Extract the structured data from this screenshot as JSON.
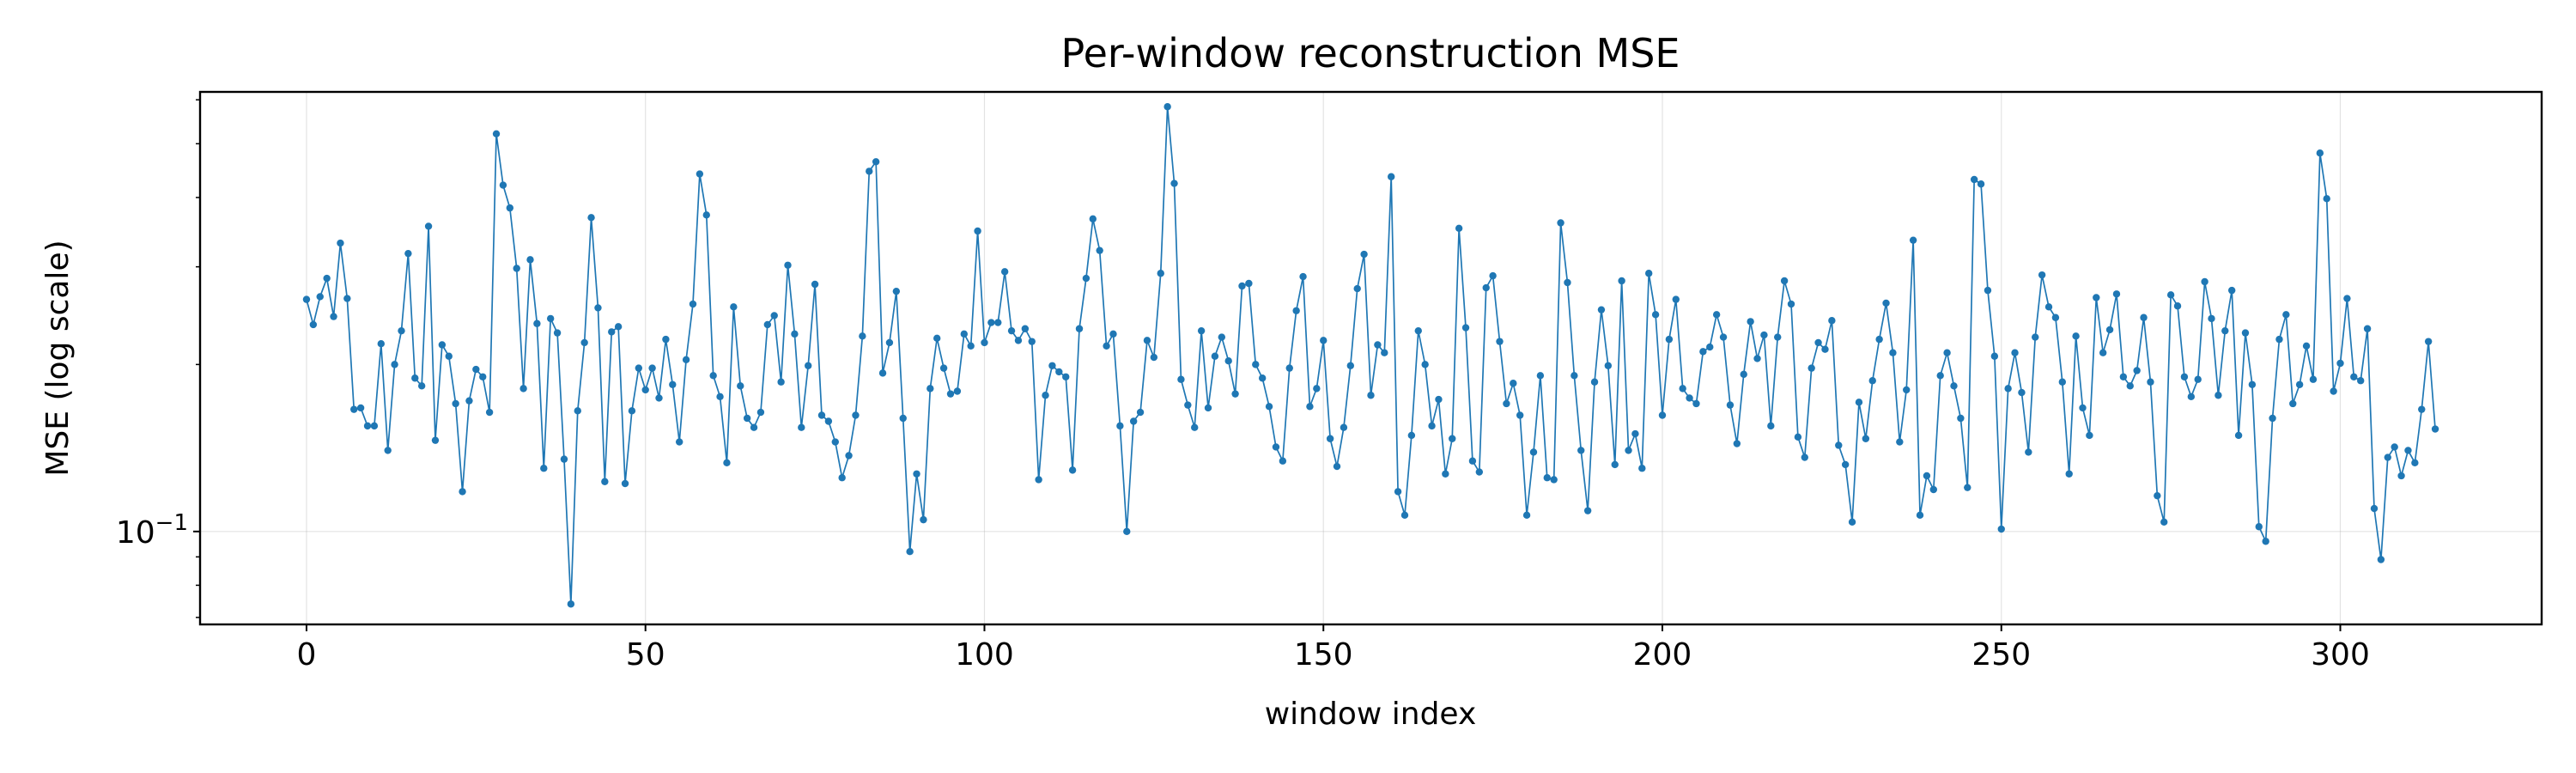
{
  "chart_data": {
    "type": "line",
    "title": "Per-window reconstruction MSE",
    "xlabel": "window index",
    "ylabel": "MSE (log scale)",
    "xlim": [
      -15.7,
      329.7
    ],
    "ylim": [
      0.068,
      0.62
    ],
    "yscale": "log",
    "grid": true,
    "legend": false,
    "x_ticks": [
      0,
      50,
      100,
      150,
      200,
      250,
      300
    ],
    "x_tick_labels": [
      "0",
      "50",
      "100",
      "150",
      "200",
      "250",
      "300"
    ],
    "y_major_ticks": [
      0.1
    ],
    "y_tick_label": {
      "base": "10",
      "exponent": "−1"
    },
    "y_minor_ticks": [
      0.07,
      0.08,
      0.09,
      0.2,
      0.3,
      0.4,
      0.5,
      0.6
    ],
    "series": [
      {
        "color": "#1f77b4",
        "marker": "o",
        "x_start": 0,
        "values": [
          0.262,
          0.236,
          0.265,
          0.286,
          0.244,
          0.331,
          0.263,
          0.166,
          0.167,
          0.155,
          0.155,
          0.218,
          0.14,
          0.2,
          0.23,
          0.317,
          0.189,
          0.183,
          0.355,
          0.146,
          0.217,
          0.207,
          0.17,
          0.118,
          0.172,
          0.196,
          0.19,
          0.164,
          0.521,
          0.421,
          0.383,
          0.298,
          0.181,
          0.309,
          0.237,
          0.13,
          0.242,
          0.228,
          0.135,
          0.074,
          0.165,
          0.219,
          0.368,
          0.253,
          0.123,
          0.229,
          0.234,
          0.122,
          0.165,
          0.197,
          0.18,
          0.197,
          0.174,
          0.222,
          0.184,
          0.145,
          0.204,
          0.257,
          0.441,
          0.372,
          0.191,
          0.175,
          0.133,
          0.254,
          0.183,
          0.16,
          0.154,
          0.164,
          0.236,
          0.245,
          0.186,
          0.302,
          0.227,
          0.154,
          0.199,
          0.279,
          0.162,
          0.158,
          0.145,
          0.125,
          0.137,
          0.162,
          0.225,
          0.446,
          0.464,
          0.193,
          0.219,
          0.271,
          0.16,
          0.092,
          0.127,
          0.105,
          0.181,
          0.223,
          0.197,
          0.177,
          0.179,
          0.227,
          0.216,
          0.348,
          0.219,
          0.238,
          0.238,
          0.294,
          0.23,
          0.221,
          0.232,
          0.22,
          0.124,
          0.176,
          0.199,
          0.194,
          0.19,
          0.129,
          0.232,
          0.286,
          0.366,
          0.321,
          0.216,
          0.227,
          0.155,
          0.1,
          0.158,
          0.164,
          0.221,
          0.206,
          0.292,
          0.583,
          0.424,
          0.188,
          0.169,
          0.154,
          0.23,
          0.167,
          0.207,
          0.224,
          0.203,
          0.177,
          0.277,
          0.28,
          0.2,
          0.189,
          0.168,
          0.142,
          0.134,
          0.197,
          0.25,
          0.288,
          0.168,
          0.181,
          0.221,
          0.147,
          0.131,
          0.154,
          0.199,
          0.274,
          0.316,
          0.176,
          0.217,
          0.21,
          0.436,
          0.118,
          0.107,
          0.149,
          0.23,
          0.2,
          0.155,
          0.173,
          0.127,
          0.147,
          0.352,
          0.233,
          0.134,
          0.128,
          0.275,
          0.289,
          0.22,
          0.17,
          0.185,
          0.162,
          0.107,
          0.139,
          0.191,
          0.125,
          0.124,
          0.36,
          0.281,
          0.191,
          0.14,
          0.109,
          0.186,
          0.251,
          0.199,
          0.132,
          0.283,
          0.14,
          0.15,
          0.13,
          0.292,
          0.246,
          0.162,
          0.222,
          0.262,
          0.181,
          0.174,
          0.17,
          0.211,
          0.215,
          0.246,
          0.224,
          0.169,
          0.144,
          0.192,
          0.239,
          0.205,
          0.226,
          0.155,
          0.224,
          0.283,
          0.257,
          0.148,
          0.136,
          0.197,
          0.219,
          0.213,
          0.24,
          0.143,
          0.132,
          0.104,
          0.171,
          0.147,
          0.187,
          0.222,
          0.258,
          0.21,
          0.145,
          0.18,
          0.335,
          0.107,
          0.126,
          0.119,
          0.191,
          0.21,
          0.183,
          0.16,
          0.12,
          0.431,
          0.423,
          0.272,
          0.207,
          0.101,
          0.181,
          0.21,
          0.178,
          0.139,
          0.224,
          0.29,
          0.254,
          0.243,
          0.186,
          0.127,
          0.225,
          0.167,
          0.149,
          0.264,
          0.21,
          0.231,
          0.268,
          0.19,
          0.183,
          0.195,
          0.243,
          0.186,
          0.116,
          0.104,
          0.267,
          0.255,
          0.19,
          0.175,
          0.188,
          0.282,
          0.242,
          0.176,
          0.23,
          0.272,
          0.149,
          0.228,
          0.184,
          0.102,
          0.096,
          0.16,
          0.222,
          0.246,
          0.17,
          0.184,
          0.216,
          0.188,
          0.481,
          0.398,
          0.179,
          0.201,
          0.263,
          0.19,
          0.187,
          0.232,
          0.11,
          0.089,
          0.136,
          0.142,
          0.126,
          0.14,
          0.133,
          0.166,
          0.22,
          0.153
        ]
      }
    ]
  }
}
